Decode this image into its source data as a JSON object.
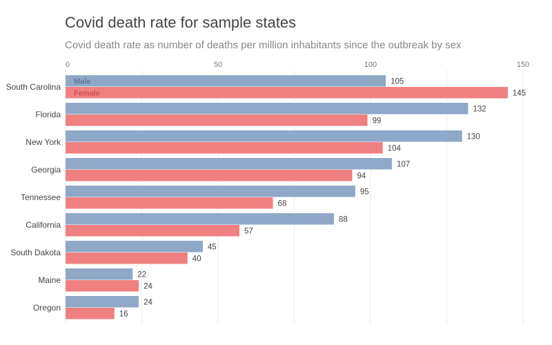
{
  "title": "Covid death rate for sample states",
  "subtitle": "Covid death rate as number of deaths per million inhabitants since the outbreak by sex",
  "chart_data": {
    "type": "bar",
    "orientation": "horizontal",
    "categories": [
      "South Carolina",
      "Florida",
      "New York",
      "Georgia",
      "Tennessee",
      "California",
      "South Dakota",
      "Maine",
      "Oregon"
    ],
    "series": [
      {
        "name": "Male",
        "color": "#8fa8c8",
        "label_color": "#5f7899",
        "values": [
          105,
          132,
          130,
          107,
          95,
          88,
          45,
          22,
          24
        ]
      },
      {
        "name": "Female",
        "color": "#f08080",
        "label_color": "#d05050",
        "values": [
          145,
          99,
          104,
          94,
          68,
          57,
          40,
          24,
          16
        ]
      }
    ],
    "x_ticks": [
      0,
      50,
      100,
      150
    ],
    "xlim": [
      0,
      150
    ],
    "grid": true,
    "legend": "inline-first-bar"
  }
}
